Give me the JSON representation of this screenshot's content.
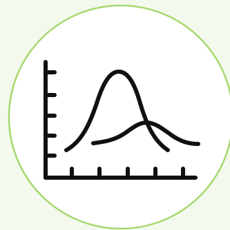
{
  "icon": {
    "name": "distribution-curves-icon",
    "description_colors": {
      "background": "#f3f9ec",
      "circle_fill": "#ffffff",
      "circle_stroke": "#a6d86e",
      "glyph": "#111111"
    }
  }
}
